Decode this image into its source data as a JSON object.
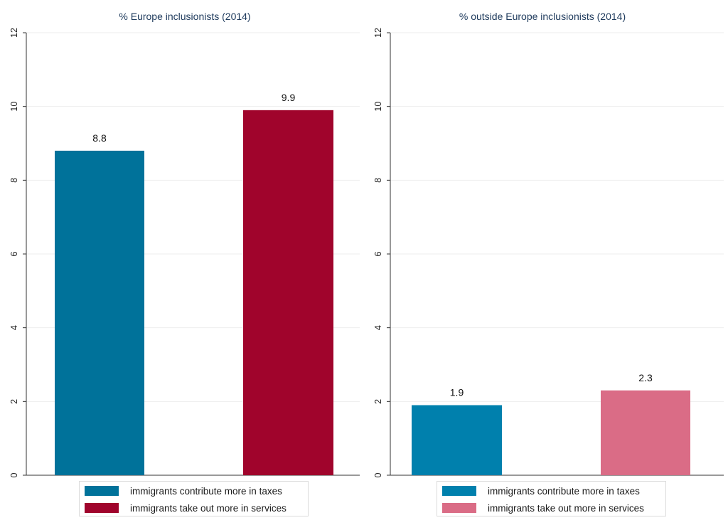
{
  "chart_data": [
    {
      "type": "bar",
      "title": "% Europe inclusionists (2014)",
      "xlabel": "",
      "ylabel": "",
      "ylim": [
        0,
        12
      ],
      "yticks": [
        "0",
        "2",
        "4",
        "6",
        "8",
        "10",
        "12"
      ],
      "grid": true,
      "legend_position": "bottom",
      "series": [
        {
          "name": "immigrants contribute more in taxes",
          "value": 8.8,
          "label": "8.8",
          "color": "#00729a"
        },
        {
          "name": "immigrants take out more in services",
          "value": 9.9,
          "label": "9.9",
          "color": "#a0042c"
        }
      ]
    },
    {
      "type": "bar",
      "title": "% outside Europe inclusionists (2014)",
      "xlabel": "",
      "ylabel": "",
      "ylim": [
        0,
        12
      ],
      "yticks": [
        "0",
        "2",
        "4",
        "6",
        "8",
        "10",
        "12"
      ],
      "grid": true,
      "legend_position": "bottom",
      "series": [
        {
          "name": "immigrants contribute more in taxes",
          "value": 1.9,
          "label": "1.9",
          "color": "#0080ad"
        },
        {
          "name": "immigrants take out more in services",
          "value": 2.3,
          "label": "2.3",
          "color": "#da6c86"
        }
      ]
    }
  ]
}
